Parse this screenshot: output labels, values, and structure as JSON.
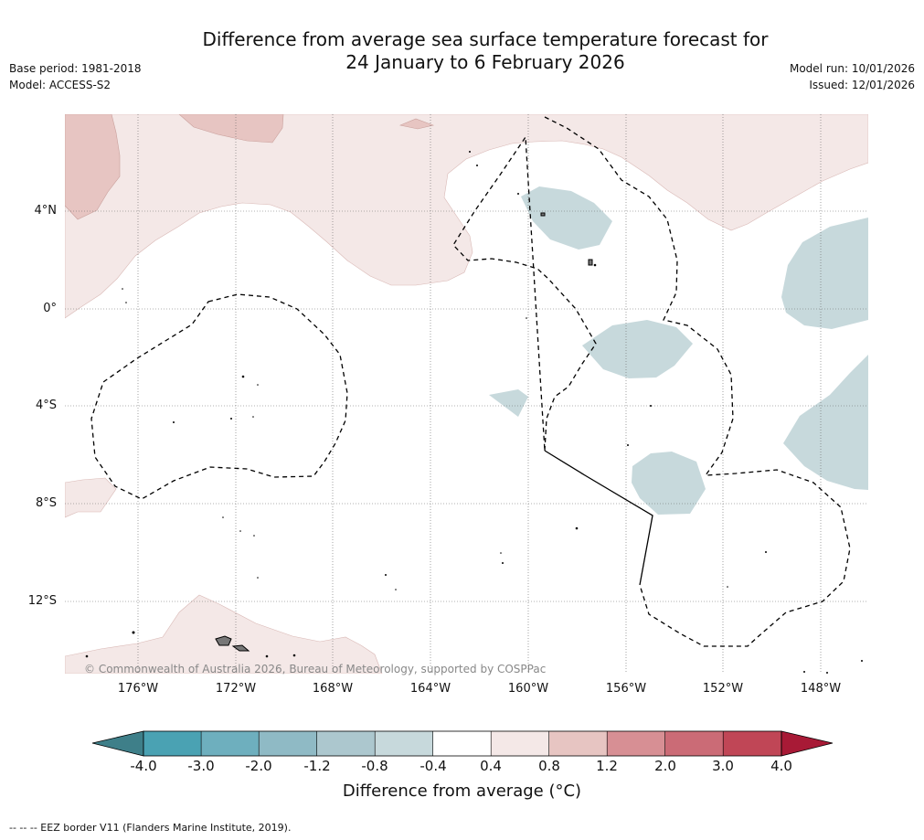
{
  "title": {
    "line1": "Difference from average sea surface temperature forecast for",
    "line2": "24 January to 6 February 2026"
  },
  "meta_left": {
    "base_period": "Base period: 1981-2018",
    "model": "Model: ACCESS-S2"
  },
  "meta_right": {
    "model_run": "Model run: 10/01/2026",
    "issued": "Issued: 12/01/2026"
  },
  "map": {
    "latitude_labels": [
      "4°N",
      "0°",
      "4°S",
      "8°S",
      "12°S"
    ],
    "longitude_labels": [
      "176°W",
      "172°W",
      "168°W",
      "164°W",
      "160°W",
      "156°W",
      "152°W",
      "148°W"
    ],
    "copyright": "© Commonwealth of Australia 2026, Bureau of Meteorology, supported by COSPPac",
    "icons": [
      "eez-border-dashed-line",
      "island-outline",
      "gridlines-dotted"
    ]
  },
  "colorbar": {
    "labels": [
      "-4.0",
      "-3.0",
      "-2.0",
      "-1.2",
      "-0.8",
      "-0.4",
      "0.4",
      "0.8",
      "1.2",
      "2.0",
      "3.0",
      "4.0"
    ],
    "colors": [
      "#3e7f89",
      "#4aa2b3",
      "#6eafbe",
      "#8fbac5",
      "#acc7ce",
      "#c7d9dc",
      "#ffffff",
      "#f4e8e7",
      "#e7c5c2",
      "#d78f94",
      "#cb6b76",
      "#c04656",
      "#a81a36"
    ],
    "title": "Difference from average (°C)"
  },
  "footnote": "--  --  -- EEZ border V11 (Flanders Marine Institute, 2019)."
}
